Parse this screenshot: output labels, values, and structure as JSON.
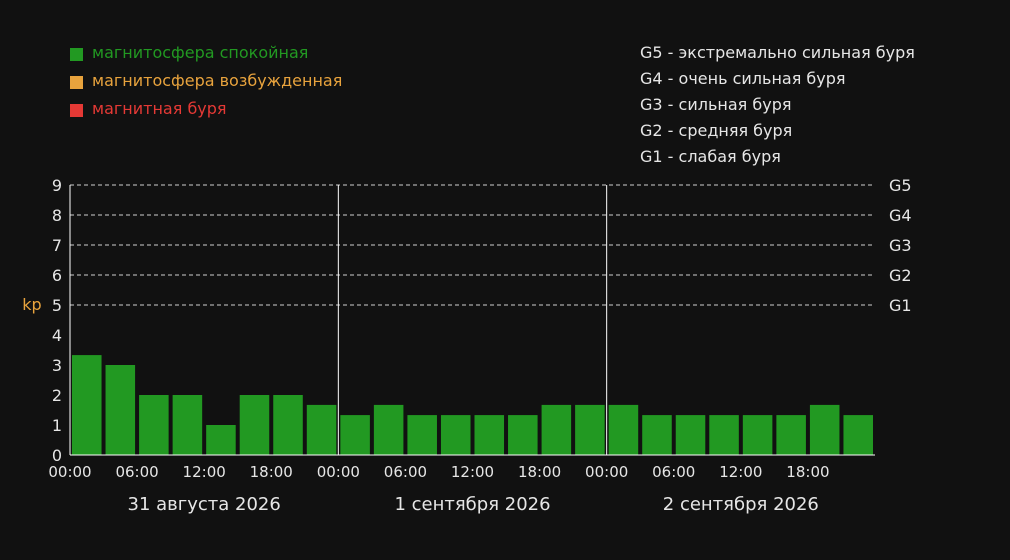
{
  "colors": {
    "background": "#111111",
    "text": "#e6e6e6",
    "quiet": "#229922",
    "active": "#e8a33d",
    "storm": "#e53935",
    "kp_label": "#e8a33d",
    "grid": "#d0d0d0"
  },
  "legend": [
    {
      "label": "магнитосфера спокойная",
      "color": "#229922"
    },
    {
      "label": "магнитосфера возбужденная",
      "color": "#e8a33d"
    },
    {
      "label": "магнитная буря",
      "color": "#e53935"
    }
  ],
  "scale_legend": [
    {
      "code": "G5",
      "desc": "экстремально сильная буря"
    },
    {
      "code": "G4",
      "desc": "очень сильная буря"
    },
    {
      "code": "G3",
      "desc": "сильная буря"
    },
    {
      "code": "G2",
      "desc": "средняя буря"
    },
    {
      "code": "G1",
      "desc": "слабая буря"
    }
  ],
  "chart_data": {
    "type": "bar",
    "ylabel": "kp",
    "ylim": [
      0,
      9
    ],
    "yticks": [
      "0",
      "1",
      "2",
      "3",
      "4",
      "5",
      "6",
      "7",
      "8",
      "9"
    ],
    "storm_levels": [
      {
        "label": "G1",
        "value": 5
      },
      {
        "label": "G2",
        "value": 6
      },
      {
        "label": "G3",
        "value": 7
      },
      {
        "label": "G4",
        "value": 8
      },
      {
        "label": "G5",
        "value": 9
      }
    ],
    "grid": true,
    "days": [
      {
        "label": "31 августа 2026",
        "values": [
          3.33,
          3.0,
          2.0,
          2.0,
          1.0,
          2.0,
          2.0,
          1.67
        ]
      },
      {
        "label": "1 сентября 2026",
        "values": [
          1.33,
          1.67,
          1.33,
          1.33,
          1.33,
          1.33,
          1.67,
          1.67
        ]
      },
      {
        "label": "2 сентября 2026",
        "values": [
          1.67,
          1.33,
          1.33,
          1.33,
          1.33,
          1.33,
          1.67,
          1.33
        ]
      }
    ],
    "time_labels": [
      "00:00",
      "06:00",
      "12:00",
      "18:00"
    ]
  }
}
